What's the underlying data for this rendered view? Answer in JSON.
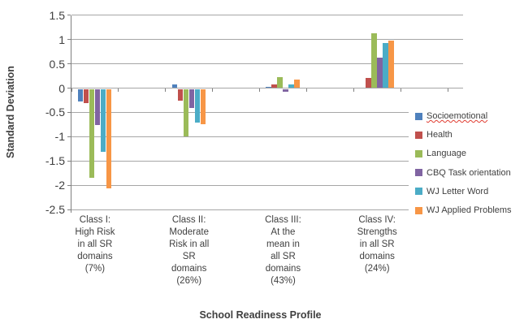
{
  "styles": {
    "grid_color": "#a6a6a6",
    "axis_color": "#808080",
    "text_color": "#3f3f3f",
    "background": "#ffffff",
    "spellcheck_color": "#e03c31"
  },
  "chart_data": {
    "type": "bar",
    "title": "",
    "xlabel": "School Readiness Profile",
    "ylabel": "Standard Deviation",
    "ylim": [
      -2.5,
      1.5
    ],
    "grid": true,
    "legend_position": "right",
    "yticks": [
      {
        "value": 1.5,
        "label": "1.5"
      },
      {
        "value": 1,
        "label": "1"
      },
      {
        "value": 0.5,
        "label": "0.5"
      },
      {
        "value": 0,
        "label": "0"
      },
      {
        "value": -0.5,
        "label": "-0.5"
      },
      {
        "value": -1,
        "label": "-1"
      },
      {
        "value": -1.5,
        "label": "-1.5"
      },
      {
        "value": -2,
        "label": "-2"
      },
      {
        "value": -2.5,
        "label": "-2.5"
      }
    ],
    "categories": [
      {
        "label_lines": [
          "Class I:",
          "High Risk",
          "in all SR",
          "domains",
          "(7%)"
        ]
      },
      {
        "label_lines": [
          "Class II:",
          "Moderate",
          "Risk in all",
          "SR",
          "domains",
          "(26%)"
        ]
      },
      {
        "label_lines": [
          "Class III:",
          "At the",
          "mean in",
          "all SR",
          "domains",
          "(43%)"
        ]
      },
      {
        "label_lines": [
          "Class IV:",
          "Strengths",
          "in all SR",
          "domains",
          "(24%)"
        ]
      }
    ],
    "series": [
      {
        "name": "Socioemotional",
        "color": "#4f81bd",
        "spellcheck_underline": true,
        "values": [
          -0.26,
          0.08,
          0.03,
          0
        ]
      },
      {
        "name": "Health",
        "color": "#c0504d",
        "spellcheck_underline": false,
        "values": [
          -0.29,
          -0.25,
          0.07,
          0.21
        ]
      },
      {
        "name": "Language",
        "color": "#9bbb59",
        "spellcheck_underline": false,
        "values": [
          -1.82,
          -0.98,
          0.22,
          1.13
        ]
      },
      {
        "name": "CBQ Task orientation",
        "color": "#8064a2",
        "spellcheck_underline": false,
        "values": [
          -0.74,
          -0.4,
          -0.06,
          0.63
        ]
      },
      {
        "name": "WJ Letter Word",
        "color": "#4bacc6",
        "spellcheck_underline": false,
        "values": [
          -1.29,
          -0.7,
          0.07,
          0.93
        ]
      },
      {
        "name": "WJ Applied Problems",
        "color": "#f79646",
        "spellcheck_underline": false,
        "values": [
          -2.04,
          -0.73,
          0.18,
          0.97
        ]
      }
    ]
  }
}
